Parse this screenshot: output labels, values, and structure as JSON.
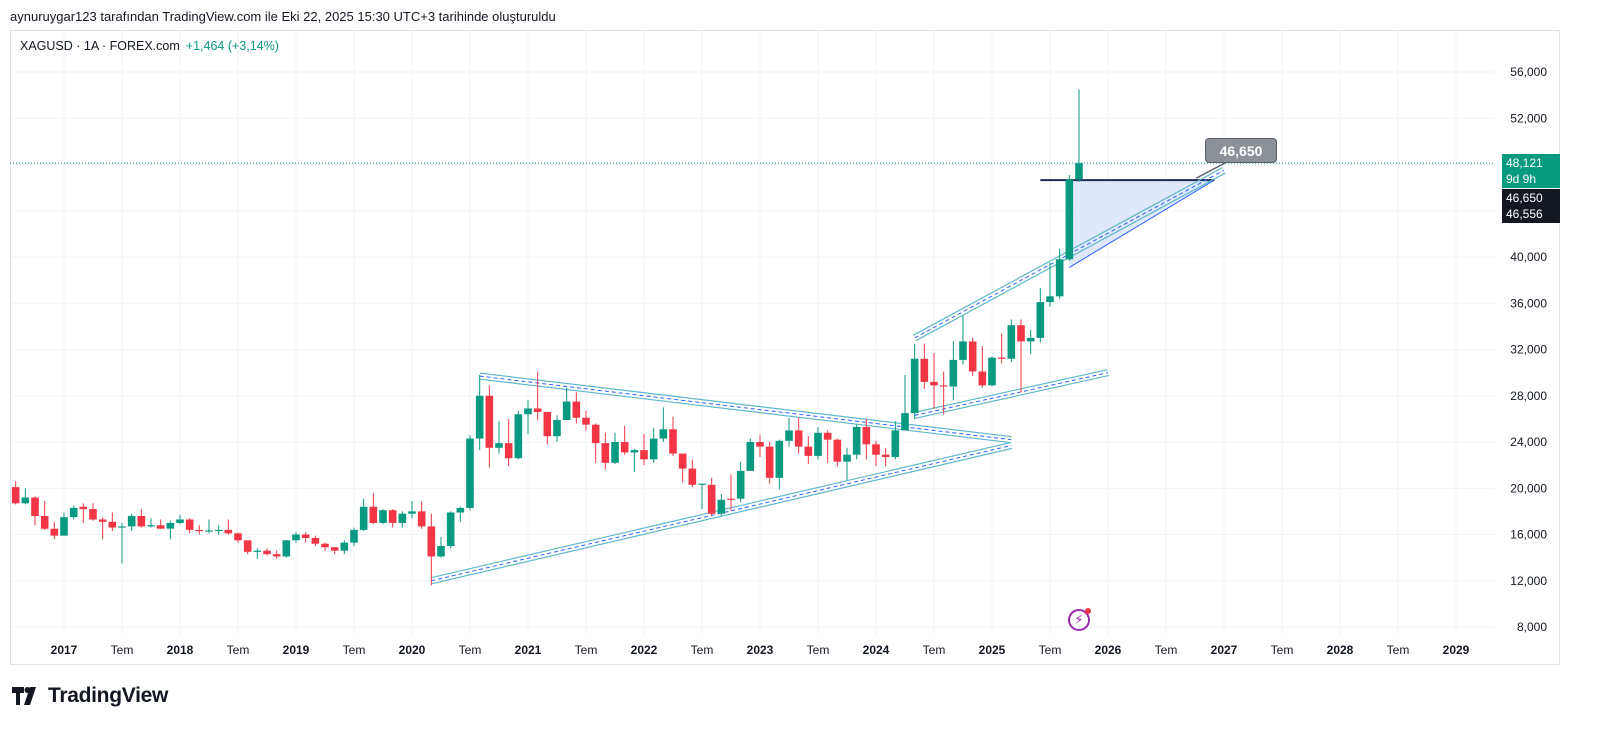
{
  "caption": "aynuruygar123 tarafından TradingView.com ile Eki 22, 2025 15:30 UTC+3 tarihinde oluşturuldu",
  "legend": {
    "symbol": "XAGUSD · 1A · FOREX.com",
    "change": "+1,464 (+3,14%)"
  },
  "price_tags": {
    "last_price": "48,121",
    "countdown": "9d 9h",
    "line_price_1": "46,650",
    "line_price_2": "46,556"
  },
  "callout": "46,650",
  "logo_text": "TradingView",
  "colors": {
    "up": "#089981",
    "down": "#f23645",
    "channel": "#5fb8cc",
    "channel_mid": "#2962ff",
    "fill": "#dbe4fb",
    "hline": "#1e2a5a"
  },
  "chart_data": {
    "type": "candlestick",
    "title": "XAGUSD · 1A · FOREX.com",
    "interval": "monthly",
    "ylim": [
      6.5,
      58
    ],
    "xlim": [
      "2016-08",
      "2029-10"
    ],
    "y_ticks": [
      "56,000",
      "52,000",
      "40,000",
      "36,000",
      "32,000",
      "28,000",
      "24,000",
      "20,000",
      "16,000",
      "12,000",
      "8,000"
    ],
    "y_tick_values": [
      56,
      52,
      40,
      36,
      32,
      28,
      24,
      20,
      16,
      12,
      8
    ],
    "grid_values": [
      56,
      52,
      48,
      44,
      40,
      36,
      32,
      28,
      24,
      20,
      16,
      12,
      8
    ],
    "x_ticks": [
      {
        "label": "2017",
        "date": "2017-01",
        "year": true
      },
      {
        "label": "Tem",
        "date": "2017-07"
      },
      {
        "label": "2018",
        "date": "2018-01",
        "year": true
      },
      {
        "label": "Tem",
        "date": "2018-07"
      },
      {
        "label": "2019",
        "date": "2019-01",
        "year": true
      },
      {
        "label": "Tem",
        "date": "2019-07"
      },
      {
        "label": "2020",
        "date": "2020-01",
        "year": true
      },
      {
        "label": "Tem",
        "date": "2020-07"
      },
      {
        "label": "2021",
        "date": "2021-01",
        "year": true
      },
      {
        "label": "Tem",
        "date": "2021-07"
      },
      {
        "label": "2022",
        "date": "2022-01",
        "year": true
      },
      {
        "label": "Tem",
        "date": "2022-07"
      },
      {
        "label": "2023",
        "date": "2023-01",
        "year": true
      },
      {
        "label": "Tem",
        "date": "2023-07"
      },
      {
        "label": "2024",
        "date": "2024-01",
        "year": true
      },
      {
        "label": "Tem",
        "date": "2024-07"
      },
      {
        "label": "2025",
        "date": "2025-01",
        "year": true
      },
      {
        "label": "Tem",
        "date": "2025-07"
      },
      {
        "label": "2026",
        "date": "2026-01",
        "year": true
      },
      {
        "label": "Tem",
        "date": "2026-07"
      },
      {
        "label": "2027",
        "date": "2027-01",
        "year": true
      },
      {
        "label": "Tem",
        "date": "2027-07"
      },
      {
        "label": "2028",
        "date": "2028-01",
        "year": true
      },
      {
        "label": "Tem",
        "date": "2028-07"
      },
      {
        "label": "2029",
        "date": "2029-01",
        "year": true
      }
    ],
    "last_price": 48.121,
    "candles_columns": [
      "date",
      "open",
      "high",
      "low",
      "close"
    ],
    "candles": [
      [
        "2016-08",
        20.1,
        20.6,
        18.6,
        18.7
      ],
      [
        "2016-09",
        18.7,
        20.0,
        18.6,
        19.2
      ],
      [
        "2016-10",
        19.2,
        19.3,
        16.8,
        17.6
      ],
      [
        "2016-11",
        17.6,
        18.9,
        16.4,
        16.5
      ],
      [
        "2016-12",
        16.5,
        17.1,
        15.6,
        15.9
      ],
      [
        "2017-01",
        15.9,
        17.9,
        15.9,
        17.5
      ],
      [
        "2017-02",
        17.5,
        18.5,
        17.3,
        18.3
      ],
      [
        "2017-03",
        18.4,
        18.7,
        17.0,
        18.2
      ],
      [
        "2017-04",
        18.2,
        18.7,
        17.2,
        17.3
      ],
      [
        "2017-05",
        17.3,
        17.5,
        15.6,
        17.1
      ],
      [
        "2017-06",
        17.1,
        17.9,
        16.3,
        16.6
      ],
      [
        "2017-07",
        16.6,
        17.0,
        13.5,
        16.7
      ],
      [
        "2017-08",
        16.7,
        17.8,
        16.3,
        17.6
      ],
      [
        "2017-09",
        17.6,
        18.2,
        16.6,
        16.7
      ],
      [
        "2017-10",
        16.7,
        17.4,
        16.6,
        16.8
      ],
      [
        "2017-11",
        16.8,
        17.3,
        16.5,
        16.5
      ],
      [
        "2017-12",
        16.5,
        17.2,
        15.6,
        17.0
      ],
      [
        "2018-01",
        17.0,
        17.7,
        16.9,
        17.3
      ],
      [
        "2018-02",
        17.3,
        17.4,
        16.1,
        16.4
      ],
      [
        "2018-03",
        16.4,
        16.8,
        16.0,
        16.3
      ],
      [
        "2018-04",
        16.3,
        17.3,
        16.1,
        16.35
      ],
      [
        "2018-05",
        16.3,
        16.8,
        16.0,
        16.4
      ],
      [
        "2018-06",
        16.4,
        17.3,
        16.0,
        16.1
      ],
      [
        "2018-07",
        16.1,
        16.2,
        15.3,
        15.5
      ],
      [
        "2018-08",
        15.5,
        15.5,
        14.3,
        14.5
      ],
      [
        "2018-09",
        14.5,
        14.8,
        13.9,
        14.6
      ],
      [
        "2018-10",
        14.6,
        14.8,
        14.2,
        14.3
      ],
      [
        "2018-11",
        14.3,
        14.6,
        13.9,
        14.1
      ],
      [
        "2018-12",
        14.1,
        15.5,
        14.0,
        15.5
      ],
      [
        "2019-01",
        15.5,
        16.2,
        15.3,
        16.0
      ],
      [
        "2019-02",
        16.0,
        16.2,
        15.3,
        15.7
      ],
      [
        "2019-03",
        15.7,
        15.9,
        15.0,
        15.2
      ],
      [
        "2019-04",
        15.2,
        15.3,
        14.6,
        14.9
      ],
      [
        "2019-05",
        14.9,
        14.9,
        14.3,
        14.6
      ],
      [
        "2019-06",
        14.6,
        15.5,
        14.3,
        15.3
      ],
      [
        "2019-07",
        15.3,
        16.6,
        15.0,
        16.4
      ],
      [
        "2019-08",
        16.4,
        19.1,
        16.3,
        18.4
      ],
      [
        "2019-09",
        18.4,
        19.6,
        16.9,
        17.0
      ],
      [
        "2019-10",
        17.0,
        18.2,
        16.9,
        18.1
      ],
      [
        "2019-11",
        18.1,
        18.2,
        16.6,
        17.0
      ],
      [
        "2019-12",
        17.0,
        18.0,
        16.6,
        17.8
      ],
      [
        "2020-01",
        17.8,
        18.9,
        17.4,
        18.0
      ],
      [
        "2020-02",
        18.0,
        18.9,
        16.5,
        16.7
      ],
      [
        "2020-03",
        16.7,
        17.8,
        11.6,
        14.1
      ],
      [
        "2020-04",
        14.1,
        15.8,
        14.0,
        15.0
      ],
      [
        "2020-05",
        15.0,
        18.0,
        14.8,
        17.9
      ],
      [
        "2020-06",
        17.9,
        18.4,
        17.1,
        18.3
      ],
      [
        "2020-07",
        18.3,
        24.6,
        18.1,
        24.3
      ],
      [
        "2020-08",
        24.3,
        29.8,
        23.3,
        28.0
      ],
      [
        "2020-09",
        28.0,
        28.9,
        21.8,
        23.5
      ],
      [
        "2020-10",
        23.5,
        25.8,
        23.0,
        23.9
      ],
      [
        "2020-11",
        23.9,
        26.0,
        21.9,
        22.6
      ],
      [
        "2020-12",
        22.6,
        26.7,
        22.5,
        26.4
      ],
      [
        "2021-01",
        26.4,
        27.6,
        24.7,
        26.9
      ],
      [
        "2021-02",
        26.9,
        30.1,
        25.9,
        26.6
      ],
      [
        "2021-03",
        26.6,
        26.6,
        23.8,
        24.5
      ],
      [
        "2021-04",
        24.5,
        26.3,
        24.0,
        25.9
      ],
      [
        "2021-05",
        25.9,
        28.7,
        25.9,
        27.5
      ],
      [
        "2021-06",
        27.5,
        28.3,
        25.6,
        26.1
      ],
      [
        "2021-07",
        26.1,
        26.7,
        25.0,
        25.5
      ],
      [
        "2021-08",
        25.5,
        25.6,
        22.2,
        23.9
      ],
      [
        "2021-09",
        23.9,
        24.8,
        21.6,
        22.2
      ],
      [
        "2021-10",
        22.2,
        24.8,
        22.1,
        24.0
      ],
      [
        "2021-11",
        24.0,
        25.4,
        22.9,
        23.1
      ],
      [
        "2021-12",
        23.1,
        23.4,
        21.4,
        23.3
      ],
      [
        "2022-01",
        23.3,
        24.7,
        22.0,
        22.5
      ],
      [
        "2022-02",
        22.5,
        25.2,
        22.2,
        24.3
      ],
      [
        "2022-03",
        24.3,
        27.0,
        24.0,
        25.1
      ],
      [
        "2022-04",
        25.1,
        26.2,
        22.8,
        23.0
      ],
      [
        "2022-05",
        23.0,
        23.0,
        20.5,
        21.7
      ],
      [
        "2022-06",
        21.7,
        22.5,
        20.1,
        20.3
      ],
      [
        "2022-07",
        20.3,
        20.4,
        18.2,
        20.4
      ],
      [
        "2022-08",
        20.3,
        20.9,
        17.6,
        17.8
      ],
      [
        "2022-09",
        17.8,
        19.5,
        17.6,
        19.0
      ],
      [
        "2022-10",
        19.1,
        21.2,
        18.1,
        19.0
      ],
      [
        "2022-11",
        19.1,
        22.3,
        18.8,
        21.5
      ],
      [
        "2022-12",
        21.5,
        24.3,
        21.5,
        24.0
      ],
      [
        "2023-01",
        24.0,
        24.6,
        22.7,
        23.6
      ],
      [
        "2023-02",
        23.6,
        24.0,
        20.4,
        20.9
      ],
      [
        "2023-03",
        20.9,
        24.2,
        19.9,
        24.1
      ],
      [
        "2023-04",
        24.1,
        26.1,
        23.6,
        25.0
      ],
      [
        "2023-05",
        25.0,
        26.1,
        23.0,
        23.6
      ],
      [
        "2023-06",
        23.6,
        24.5,
        22.1,
        22.8
      ],
      [
        "2023-07",
        22.8,
        25.3,
        22.5,
        24.8
      ],
      [
        "2023-08",
        24.8,
        25.0,
        22.2,
        24.2
      ],
      [
        "2023-09",
        24.2,
        24.3,
        21.9,
        22.3
      ],
      [
        "2023-10",
        22.3,
        23.5,
        20.7,
        22.9
      ],
      [
        "2023-11",
        22.9,
        25.5,
        22.5,
        25.3
      ],
      [
        "2023-12",
        25.3,
        26.0,
        22.5,
        23.8
      ],
      [
        "2024-01",
        23.8,
        24.1,
        21.9,
        22.9
      ],
      [
        "2024-02",
        22.9,
        23.5,
        21.9,
        22.7
      ],
      [
        "2024-03",
        22.7,
        25.8,
        22.5,
        25.0
      ],
      [
        "2024-04",
        25.0,
        29.8,
        25.0,
        26.5
      ],
      [
        "2024-05",
        26.5,
        32.5,
        26.0,
        31.2
      ],
      [
        "2024-06",
        31.2,
        32.5,
        28.6,
        29.2
      ],
      [
        "2024-07",
        29.2,
        31.7,
        26.9,
        28.9
      ],
      [
        "2024-08",
        28.9,
        30.1,
        26.4,
        28.8
      ],
      [
        "2024-09",
        28.8,
        32.7,
        27.6,
        31.1
      ],
      [
        "2024-10",
        31.1,
        34.9,
        30.7,
        32.7
      ],
      [
        "2024-11",
        32.7,
        33.0,
        29.7,
        30.1
      ],
      [
        "2024-12",
        30.1,
        32.3,
        28.7,
        28.9
      ],
      [
        "2025-01",
        28.9,
        31.4,
        28.8,
        31.3
      ],
      [
        "2025-02",
        31.3,
        33.4,
        30.8,
        31.2
      ],
      [
        "2025-03",
        31.2,
        34.6,
        30.9,
        34.1
      ],
      [
        "2025-04",
        34.1,
        34.6,
        28.3,
        32.7
      ],
      [
        "2025-05",
        32.7,
        33.7,
        31.6,
        33.0
      ],
      [
        "2025-06",
        33.0,
        37.3,
        32.6,
        36.1
      ],
      [
        "2025-07",
        36.1,
        39.5,
        35.7,
        36.6
      ],
      [
        "2025-08",
        36.6,
        40.7,
        36.4,
        39.8
      ],
      [
        "2025-09",
        39.8,
        47.1,
        39.7,
        46.7
      ],
      [
        "2025-10",
        46.7,
        54.5,
        46.5,
        48.121
      ]
    ],
    "drawings": [
      {
        "name": "triangle-upper-trendline",
        "from": [
          "2020-08",
          29.7
        ],
        "to": [
          "2025-03",
          24.2
        ]
      },
      {
        "name": "triangle-lower-trendline",
        "from": [
          "2020-03",
          12.0
        ],
        "to": [
          "2025-03",
          23.7
        ]
      },
      {
        "name": "channel-upper-trendline",
        "from": [
          "2024-05",
          33.0
        ],
        "to": [
          "2027-01",
          47.5
        ]
      },
      {
        "name": "channel-lower-trendline",
        "from": [
          "2024-05",
          26.3
        ],
        "to": [
          "2026-01",
          30.0
        ]
      }
    ],
    "target_zone": {
      "points": [
        [
          "2025-09",
          46.65
        ],
        [
          "2026-12",
          46.65
        ],
        [
          "2025-09",
          39.1
        ]
      ]
    },
    "horizontal_line": {
      "from": "2025-06",
      "to": "2026-12",
      "price": 46.65
    }
  }
}
